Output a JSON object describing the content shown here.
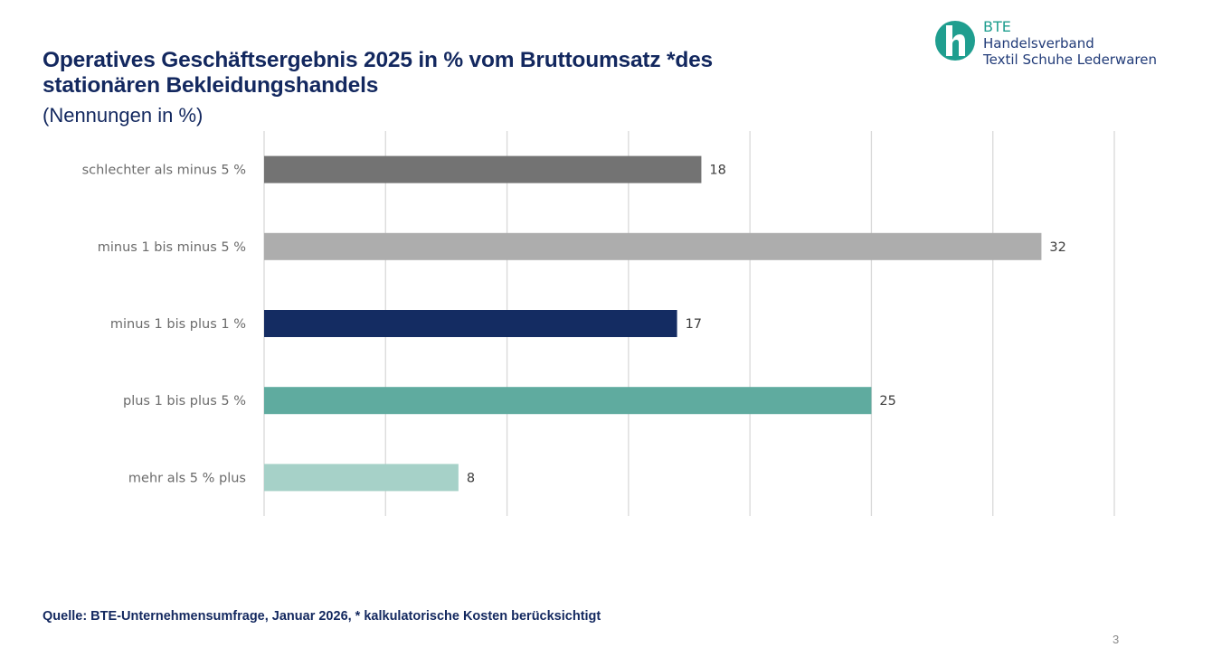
{
  "header": {
    "title_line1": "Operatives Geschäftsergebnis 2025 in % vom Bruttoumsatz *des",
    "title_line2": "stationären Bekleidungshandels",
    "subtitle": "(Nennungen in %)"
  },
  "logo": {
    "icon": "bte-h-logo-icon",
    "line1": "BTE",
    "line2": "Handelsverband",
    "line3": "Textil  Schuhe  Lederwaren",
    "color": "#1f9e8f"
  },
  "footer": {
    "source": "Quelle: BTE-Unternehmensumfrage, Januar 2026, * kalkulatorische Kosten berücksichtigt",
    "page_number": "3"
  },
  "chart_data": {
    "type": "bar",
    "orientation": "horizontal",
    "title": "Operatives Geschäftsergebnis 2025 in % vom Bruttoumsatz *des stationären Bekleidungshandels",
    "subtitle": "(Nennungen in %)",
    "xlabel": "",
    "ylabel": "",
    "categories": [
      "schlechter als minus 5 %",
      "minus 1 bis minus 5 %",
      "minus 1 bis plus 1 %",
      "plus 1 bis plus 5 %",
      "mehr als 5 % plus"
    ],
    "values": [
      18,
      32,
      17,
      25,
      8
    ],
    "colors": [
      "#737373",
      "#adadad",
      "#142c62",
      "#5fab9f",
      "#a6d1c8"
    ],
    "xlim": [
      0,
      35
    ],
    "gridlines": [
      0,
      5,
      10,
      15,
      20,
      25,
      30,
      35
    ],
    "grid": true,
    "show_tick_labels": false,
    "data_labels": true,
    "legend": "none"
  }
}
